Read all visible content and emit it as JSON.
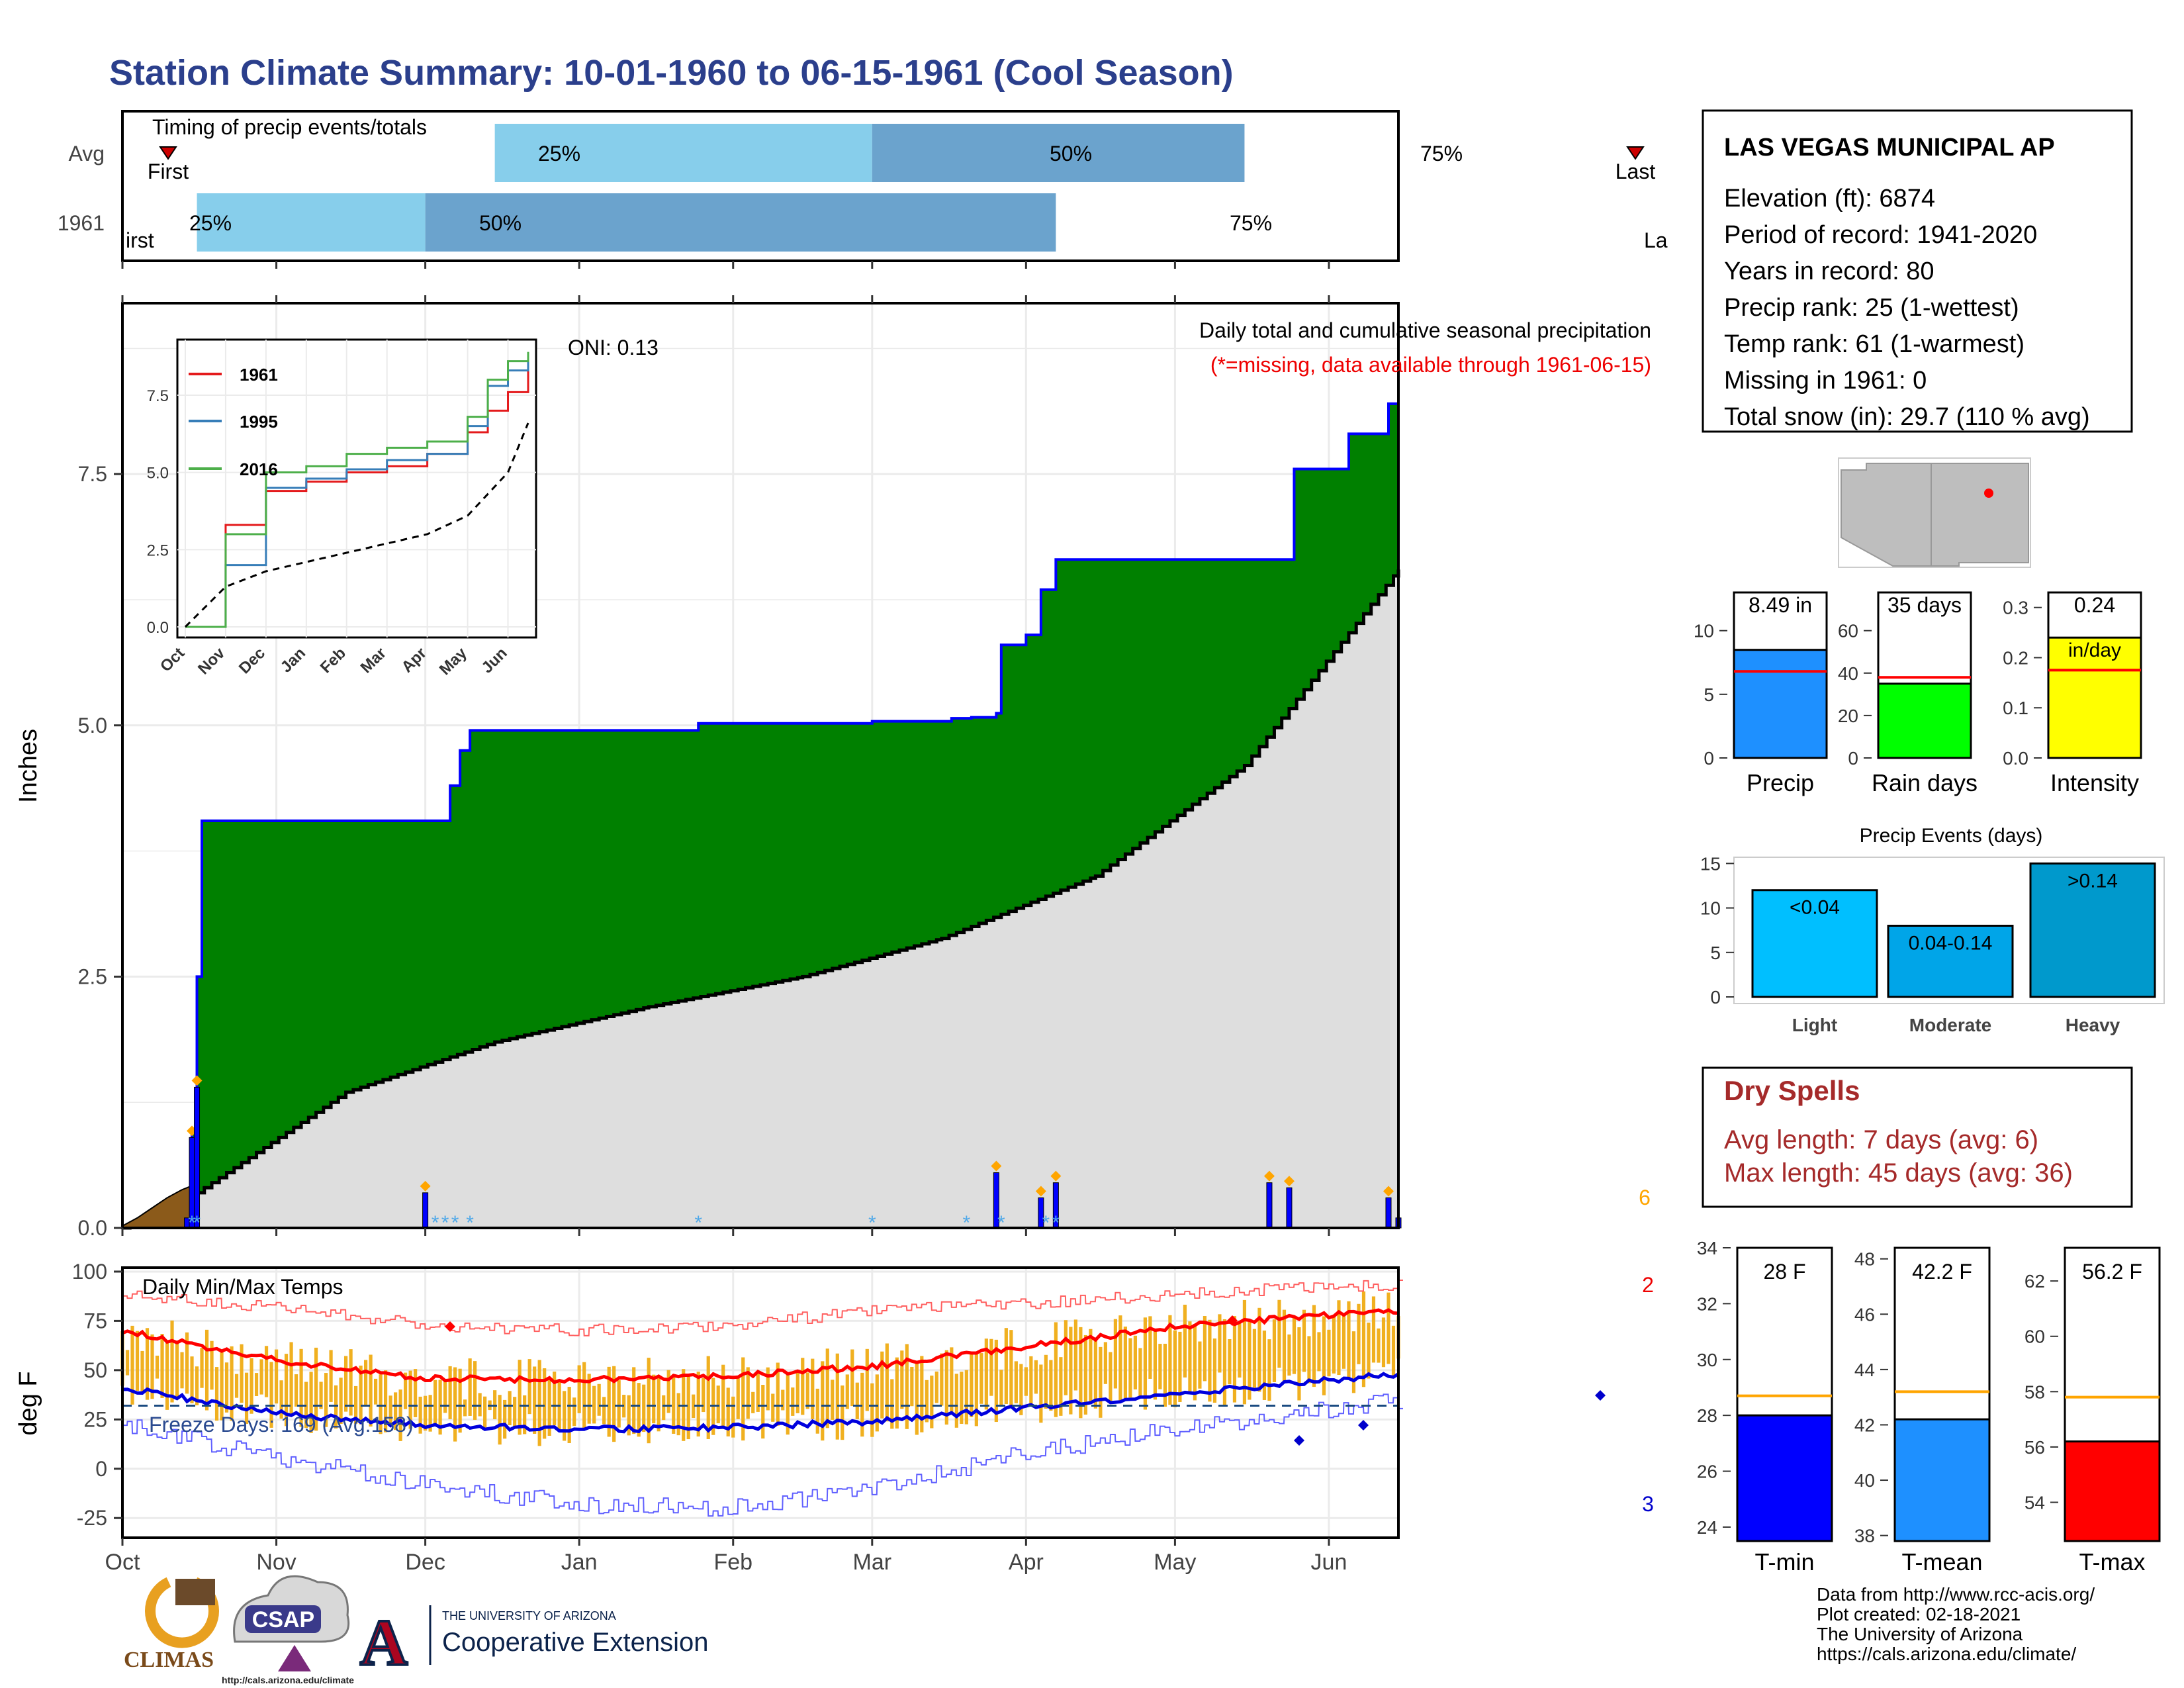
{
  "page": {
    "title": "Station Climate Summary: 10-01-1960 to 06-15-1961 (Cool Season)",
    "title_color": "#2b3f8c"
  },
  "station": {
    "name": "LAS VEGAS MUNICIPAL AP",
    "elevation": "Elevation (ft): 6874",
    "period": "Period of record: 1941-2020",
    "years": "Years in record: 80",
    "precip_rank": "Precip rank: 25 (1-wettest)",
    "temp_rank": "Temp rank: 61 (1-warmest)",
    "missing": "Missing in 1961: 0",
    "snow": "Total snow (in): 29.7 (110 % avg)"
  },
  "colors": {
    "cumulative_fill": "#008000",
    "avg_fill": "#dedede",
    "outline_blue": "#0000ff",
    "bar_light": "#87ceeb",
    "bar_dark": "#6ba3cd",
    "precip_bar": "#1e90ff",
    "rain_days_bar": "#00ff00",
    "intensity_bar": "#ffff00",
    "events_light": "#00bfff",
    "events_moderate": "#00a5e8",
    "events_heavy": "#0099cc",
    "tmin_bar": "#0000ff",
    "tmean_bar": "#1e90ff",
    "tmax_bar": "#ff0000",
    "dry_spell_text": "#a52a2a",
    "temp_bars": "#f0b020"
  },
  "timing": {
    "title": "Timing of precip events/totals",
    "rows": [
      "Avg",
      "1961"
    ],
    "avg_markers": {
      "first": "First",
      "p25": "25%",
      "p50": "50%",
      "p75": "75%",
      "last": "Last"
    },
    "y1961_markers": {
      "first": "irst",
      "p25": "25%",
      "p50": "50%",
      "p75": "75%",
      "last": "La"
    }
  },
  "precip_panel": {
    "ylabel": "Inches",
    "caption": "Daily total and cumulative seasonal precipitation",
    "missing_note": "(*=missing, data available through 1961-06-15)",
    "oni": "ONI: 0.13",
    "yticks": [
      "0.0",
      "2.5",
      "5.0",
      "7.5"
    ],
    "corner_count": "6"
  },
  "inset": {
    "legend": [
      "1961",
      "1995",
      "2016"
    ],
    "legend_colors": [
      "#e41a1c",
      "#377eb8",
      "#4daf4a"
    ],
    "yticks": [
      "0.0",
      "2.5",
      "5.0",
      "7.5"
    ],
    "xticks": [
      "Oct",
      "Nov",
      "Dec",
      "Jan",
      "Feb",
      "Mar",
      "Apr",
      "May",
      "Jun"
    ]
  },
  "temp_panel": {
    "ylabel": "deg F",
    "title": "Daily Min/Max Temps",
    "freeze": "Freeze Days: 169 (Avg:158)",
    "yticks": [
      "-25",
      "0",
      "25",
      "50",
      "75",
      "100"
    ],
    "xticks": [
      "Oct",
      "Nov",
      "Dec",
      "Jan",
      "Feb",
      "Mar",
      "Apr",
      "May",
      "Jun"
    ],
    "count_top": "2",
    "count_bottom": "3"
  },
  "summary_bars": [
    {
      "label": "Precip",
      "value_text": "8.49 in",
      "value": 8.49,
      "avg": 6.8,
      "ymax": 13,
      "yticks": [
        "0",
        "5",
        "10"
      ]
    },
    {
      "label": "Rain days",
      "value_text": "35 days",
      "value": 35,
      "avg": 38,
      "ymax": 78,
      "yticks": [
        "0",
        "20",
        "40",
        "60"
      ]
    },
    {
      "label": "Intensity",
      "value_text": "0.24",
      "value_unit": "in/day",
      "value": 0.24,
      "avg": 0.175,
      "ymax": 0.33,
      "yticks": [
        "0.0",
        "0.1",
        "0.2",
        "0.3"
      ]
    }
  ],
  "events": {
    "title": "Precip Events (days)",
    "yticks": [
      "0",
      "5",
      "10",
      "15"
    ],
    "bars": [
      {
        "label": "Light",
        "range": "<0.04",
        "value": 12
      },
      {
        "label": "Moderate",
        "range": "0.04-0.14",
        "value": 8
      },
      {
        "label": "Heavy",
        "range": ">0.14",
        "value": 15
      }
    ]
  },
  "dry_spells": {
    "title": "Dry Spells",
    "avg": "Avg length: 7 days (avg: 6)",
    "max": "Max length: 45 days (avg: 36)"
  },
  "temp_bars": [
    {
      "label": "T-min",
      "value_text": "28 F",
      "value": 28,
      "avg": 28.7,
      "ymin": 23.5,
      "ymax": 34,
      "yticks": [
        "24",
        "26",
        "28",
        "30",
        "32",
        "34"
      ]
    },
    {
      "label": "T-mean",
      "value_text": "42.2 F",
      "value": 42.2,
      "avg": 43.2,
      "ymin": 37.8,
      "ymax": 48.4,
      "yticks": [
        "38",
        "40",
        "42",
        "44",
        "46",
        "48"
      ]
    },
    {
      "label": "T-max",
      "value_text": "56.2 F",
      "value": 56.2,
      "avg": 57.8,
      "ymin": 52.6,
      "ymax": 63.2,
      "yticks": [
        "54",
        "56",
        "58",
        "60",
        "62"
      ]
    }
  ],
  "footer": {
    "source": "Data from http://www.rcc-acis.org/",
    "created": "Plot created: 02-18-2021",
    "univ": "The University of Arizona",
    "url": "https://cals.arizona.edu/climate/",
    "logo_climas": "CLIMAS",
    "logo_csap": "CSAP",
    "logo_csap_url": "http://cals.arizona.edu/climate",
    "ua_small": "THE UNIVERSITY OF ARIZONA",
    "ua_big": "Cooperative Extension"
  },
  "chart_data": [
    {
      "type": "area",
      "title": "Daily total and cumulative seasonal precipitation",
      "ylabel": "Inches",
      "ylim": [
        0,
        9.2
      ],
      "x_range": [
        "1960-10-01",
        "1961-06-15"
      ],
      "series": [
        {
          "name": "cumulative",
          "x": [
            "1960-10-01",
            "1960-10-15",
            "1960-10-16",
            "1960-10-17",
            "1960-12-01",
            "1960-12-06",
            "1960-12-08",
            "1960-12-10",
            "1961-01-25",
            "1961-03-01",
            "1961-03-17",
            "1961-03-21",
            "1961-03-26",
            "1961-03-27",
            "1961-04-01",
            "1961-04-04",
            "1961-04-07",
            "1961-05-20",
            "1961-05-25",
            "1961-06-05",
            "1961-06-13",
            "1961-06-15"
          ],
          "values": [
            0,
            0.95,
            2.5,
            4.05,
            4.05,
            4.4,
            4.75,
            4.95,
            5.02,
            5.04,
            5.07,
            5.08,
            5.12,
            5.8,
            5.9,
            6.35,
            6.65,
            6.65,
            7.55,
            7.9,
            8.2,
            8.49
          ]
        },
        {
          "name": "average",
          "x": [
            "1960-10-01",
            "1960-10-16",
            "1960-11-15",
            "1960-12-15",
            "1961-01-15",
            "1961-02-15",
            "1961-03-15",
            "1961-04-15",
            "1961-05-15",
            "1961-06-15"
          ],
          "values": [
            0,
            0.35,
            1.35,
            1.85,
            2.2,
            2.5,
            2.88,
            3.5,
            4.6,
            6.55
          ]
        },
        {
          "name": "daily",
          "x": [
            "1960-10-14",
            "1960-10-15",
            "1960-10-16",
            "1960-12-01",
            "1961-03-26",
            "1961-04-04",
            "1961-04-07",
            "1961-05-20",
            "1961-05-24",
            "1961-06-13",
            "1961-06-15"
          ],
          "values": [
            0.1,
            0.9,
            1.4,
            0.35,
            0.55,
            0.3,
            0.45,
            0.45,
            0.4,
            0.3,
            0.1
          ]
        }
      ]
    },
    {
      "type": "line",
      "title": "",
      "ylim": [
        0,
        9
      ],
      "xticks": [
        "Oct",
        "Nov",
        "Dec",
        "Jan",
        "Feb",
        "Mar",
        "Apr",
        "May",
        "Jun"
      ],
      "series": [
        {
          "name": "1961",
          "x": [
            0,
            1,
            2,
            3,
            4,
            5,
            6,
            7,
            7.5,
            8,
            8.5
          ],
          "values": [
            0,
            3.3,
            4.4,
            4.7,
            5.0,
            5.2,
            5.6,
            6.3,
            7.0,
            7.6,
            8.5
          ]
        },
        {
          "name": "1995",
          "x": [
            0,
            1,
            2,
            3,
            4,
            5,
            6,
            7,
            7.5,
            8,
            8.5
          ],
          "values": [
            0,
            2.0,
            4.5,
            4.8,
            5.1,
            5.4,
            5.6,
            6.5,
            7.8,
            8.3,
            8.8
          ]
        },
        {
          "name": "2016",
          "x": [
            0,
            1,
            2,
            3,
            4,
            5,
            6,
            7,
            7.5,
            8,
            8.5
          ],
          "values": [
            0,
            3.0,
            5.0,
            5.2,
            5.6,
            5.8,
            6.0,
            6.8,
            8.0,
            8.6,
            8.9
          ]
        },
        {
          "name": "",
          "x": [
            0,
            1,
            2,
            3,
            4,
            5,
            6,
            7,
            8,
            8.5
          ],
          "values": [
            0,
            1.3,
            1.8,
            2.1,
            2.4,
            2.7,
            3.0,
            3.6,
            5.0,
            6.6
          ]
        }
      ]
    },
    {
      "type": "line",
      "title": "Daily Min/Max Temps",
      "ylabel": "deg F",
      "ylim": [
        -35,
        102
      ],
      "xticks": [
        "Oct",
        "Nov",
        "Dec",
        "Jan",
        "Feb",
        "Mar",
        "Apr",
        "May",
        "Jun"
      ],
      "series": [
        {
          "name": "avg max",
          "x": [
            0,
            1,
            2,
            3,
            4,
            5,
            6,
            7,
            8,
            8.5
          ],
          "values": [
            70,
            55,
            46,
            45,
            47,
            52,
            62,
            72,
            78,
            80
          ]
        },
        {
          "name": "avg min",
          "x": [
            0,
            1,
            2,
            3,
            4,
            5,
            6,
            7,
            8,
            8.5
          ],
          "values": [
            41,
            28,
            22,
            20,
            21,
            24,
            31,
            38,
            45,
            48
          ]
        },
        {
          "name": "record max",
          "x": [
            0,
            1,
            2,
            3,
            4,
            5,
            6,
            7,
            8,
            8.5
          ],
          "values": [
            88,
            82,
            73,
            70,
            73,
            80,
            84,
            88,
            93,
            93
          ]
        },
        {
          "name": "record min",
          "x": [
            0,
            1,
            2,
            3,
            4,
            5,
            6,
            7,
            8,
            8.5
          ],
          "values": [
            22,
            6,
            -8,
            -18,
            -20,
            -10,
            8,
            20,
            30,
            35
          ]
        }
      ],
      "freeze_line": 32
    },
    {
      "type": "bar",
      "categories": [
        "Precip",
        "Rain days",
        "Intensity"
      ],
      "values": [
        8.49,
        35,
        0.24
      ]
    },
    {
      "type": "bar",
      "title": "Precip Events (days)",
      "categories": [
        "Light",
        "Moderate",
        "Heavy"
      ],
      "values": [
        12,
        8,
        15
      ]
    },
    {
      "type": "bar",
      "categories": [
        "T-min",
        "T-mean",
        "T-max"
      ],
      "values": [
        28,
        42.2,
        56.2
      ]
    }
  ]
}
